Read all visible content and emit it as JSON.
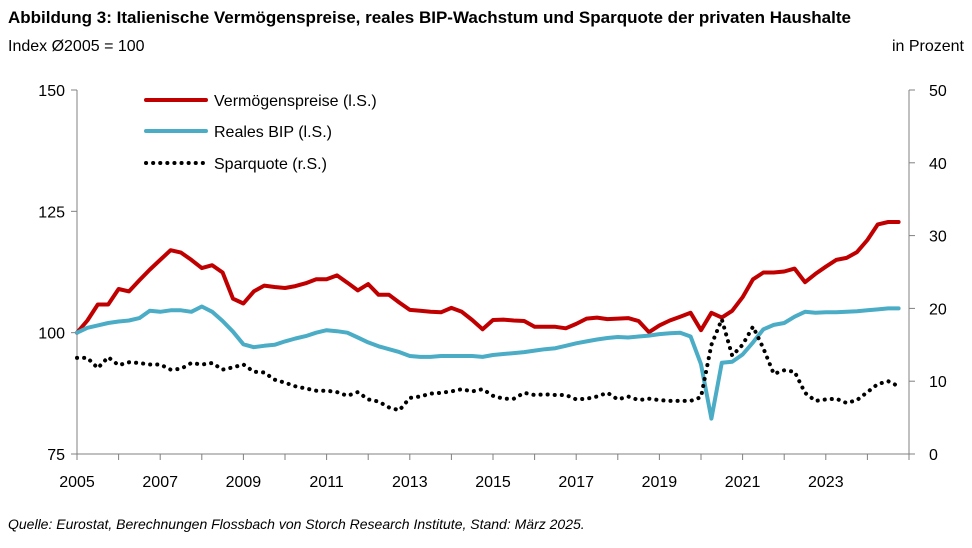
{
  "title": "Abbildung 3: Italienische Vermögenspreise, reales BIP-Wachstum und Sparquote der privaten Haushalte",
  "subtitle_left": "Index Ø2005 = 100",
  "subtitle_right": "in Prozent",
  "source": "Quelle: Eurostat, Berechnungen Flossbach von Storch Research Institute, Stand: März 2025.",
  "colors": {
    "asset_prices": "#c00000",
    "gdp": "#4bacc6",
    "savings": "#000000"
  },
  "chart_data": {
    "type": "line",
    "title": "Abbildung 3: Italienische Vermögenspreise, reales BIP-Wachstum und Sparquote der privaten Haushalte",
    "ylabel_left": "Index Ø2005 = 100",
    "ylabel_right": "in Prozent",
    "xlim": [
      2005,
      2025
    ],
    "ylim_left": [
      75,
      150
    ],
    "ylim_right": [
      0,
      50
    ],
    "x_ticks": [
      "2005",
      "2007",
      "2009",
      "2011",
      "2013",
      "2015",
      "2017",
      "2019",
      "2021",
      "2023"
    ],
    "y_ticks_left": [
      "75",
      "100",
      "125",
      "150"
    ],
    "y_ticks_right": [
      "0",
      "10",
      "20",
      "30",
      "40",
      "50"
    ],
    "legend": [
      "Vermögenspreise (l.S.)",
      "Reales BIP (l.S.)",
      "Sparquote (r.S.)"
    ],
    "series": [
      {
        "name": "Vermögenspreise (l.S.)",
        "axis": "left",
        "style": "solid",
        "x": [
          2005.0,
          2005.25,
          2005.5,
          2005.75,
          2006.0,
          2006.25,
          2006.5,
          2006.75,
          2007.0,
          2007.25,
          2007.5,
          2007.75,
          2008.0,
          2008.25,
          2008.5,
          2008.75,
          2009.0,
          2009.25,
          2009.5,
          2009.75,
          2010.0,
          2010.25,
          2010.5,
          2010.75,
          2011.0,
          2011.25,
          2011.5,
          2011.75,
          2012.0,
          2012.25,
          2012.5,
          2012.75,
          2013.0,
          2013.25,
          2013.5,
          2013.75,
          2014.0,
          2014.25,
          2014.5,
          2014.75,
          2015.0,
          2015.25,
          2015.5,
          2015.75,
          2016.0,
          2016.25,
          2016.5,
          2016.75,
          2017.0,
          2017.25,
          2017.5,
          2017.75,
          2018.0,
          2018.25,
          2018.5,
          2018.75,
          2019.0,
          2019.25,
          2019.5,
          2019.75,
          2020.0,
          2020.25,
          2020.5,
          2020.75,
          2021.0,
          2021.25,
          2021.5,
          2021.75,
          2022.0,
          2022.25,
          2022.5,
          2022.75,
          2023.0,
          2023.25,
          2023.5,
          2023.75,
          2024.0,
          2024.25,
          2024.5,
          2024.75
        ],
        "values": [
          100.0,
          102.5,
          105.8,
          105.8,
          109.0,
          108.5,
          110.8,
          113.0,
          115.0,
          117.0,
          116.5,
          115.0,
          113.3,
          113.9,
          112.4,
          107.0,
          106.0,
          108.5,
          109.7,
          109.4,
          109.2,
          109.6,
          110.2,
          111.0,
          111.0,
          111.8,
          110.3,
          108.7,
          110.0,
          107.8,
          107.8,
          106.2,
          104.7,
          104.5,
          104.3,
          104.2,
          105.1,
          104.3,
          102.6,
          100.7,
          102.6,
          102.7,
          102.5,
          102.4,
          101.2,
          101.2,
          101.2,
          100.9,
          101.8,
          102.9,
          103.1,
          102.8,
          102.9,
          103.0,
          102.4,
          100.1,
          101.5,
          102.5,
          103.3,
          104.1,
          100.5,
          104.1,
          103.1,
          104.5,
          107.3,
          111.0,
          112.4,
          112.4,
          112.6,
          113.2,
          110.4,
          112.1,
          113.6,
          115.0,
          115.4,
          116.6,
          119.1,
          122.3,
          122.8,
          122.8
        ]
      },
      {
        "name": "Reales BIP (l.S.)",
        "axis": "left",
        "style": "solid",
        "x": [
          2005.0,
          2005.25,
          2005.5,
          2005.75,
          2006.0,
          2006.25,
          2006.5,
          2006.75,
          2007.0,
          2007.25,
          2007.5,
          2007.75,
          2008.0,
          2008.25,
          2008.5,
          2008.75,
          2009.0,
          2009.25,
          2009.5,
          2009.75,
          2010.0,
          2010.25,
          2010.5,
          2010.75,
          2011.0,
          2011.25,
          2011.5,
          2011.75,
          2012.0,
          2012.25,
          2012.5,
          2012.75,
          2013.0,
          2013.25,
          2013.5,
          2013.75,
          2014.0,
          2014.25,
          2014.5,
          2014.75,
          2015.0,
          2015.25,
          2015.5,
          2015.75,
          2016.0,
          2016.25,
          2016.5,
          2016.75,
          2017.0,
          2017.25,
          2017.5,
          2017.75,
          2018.0,
          2018.25,
          2018.5,
          2018.75,
          2019.0,
          2019.25,
          2019.5,
          2019.75,
          2020.0,
          2020.25,
          2020.5,
          2020.75,
          2021.0,
          2021.25,
          2021.5,
          2021.75,
          2022.0,
          2022.25,
          2022.5,
          2022.75,
          2023.0,
          2023.25,
          2023.5,
          2023.75,
          2024.0,
          2024.25,
          2024.5,
          2024.75
        ],
        "values": [
          100.0,
          101.0,
          101.5,
          102.0,
          102.3,
          102.5,
          103.0,
          104.5,
          104.3,
          104.6,
          104.6,
          104.3,
          105.4,
          104.3,
          102.4,
          100.2,
          97.6,
          97.0,
          97.3,
          97.5,
          98.2,
          98.8,
          99.3,
          100.0,
          100.5,
          100.3,
          100.0,
          99.0,
          98.0,
          97.2,
          96.6,
          96.0,
          95.2,
          95.0,
          95.0,
          95.2,
          95.2,
          95.2,
          95.2,
          95.0,
          95.4,
          95.6,
          95.8,
          96.0,
          96.3,
          96.6,
          96.8,
          97.3,
          97.8,
          98.2,
          98.6,
          98.9,
          99.1,
          99.0,
          99.2,
          99.4,
          99.7,
          99.9,
          100.0,
          99.2,
          93.5,
          82.3,
          93.8,
          94.0,
          95.5,
          98.0,
          100.7,
          101.6,
          102.0,
          103.3,
          104.3,
          104.1,
          104.2,
          104.2,
          104.3,
          104.4,
          104.6,
          104.8,
          105.0,
          105.0
        ]
      },
      {
        "name": "Sparquote (r.S.)",
        "axis": "right",
        "style": "dotted",
        "x": [
          2005.0,
          2005.25,
          2005.5,
          2005.75,
          2006.0,
          2006.25,
          2006.5,
          2006.75,
          2007.0,
          2007.25,
          2007.5,
          2007.75,
          2008.0,
          2008.25,
          2008.5,
          2008.75,
          2009.0,
          2009.25,
          2009.5,
          2009.75,
          2010.0,
          2010.25,
          2010.5,
          2010.75,
          2011.0,
          2011.25,
          2011.5,
          2011.75,
          2012.0,
          2012.25,
          2012.5,
          2012.75,
          2013.0,
          2013.25,
          2013.5,
          2013.75,
          2014.0,
          2014.25,
          2014.5,
          2014.75,
          2015.0,
          2015.25,
          2015.5,
          2015.75,
          2016.0,
          2016.25,
          2016.5,
          2016.75,
          2017.0,
          2017.25,
          2017.5,
          2017.75,
          2018.0,
          2018.25,
          2018.5,
          2018.75,
          2019.0,
          2019.25,
          2019.5,
          2019.75,
          2020.0,
          2020.25,
          2020.5,
          2020.75,
          2021.0,
          2021.25,
          2021.5,
          2021.75,
          2022.0,
          2022.25,
          2022.5,
          2022.75,
          2023.0,
          2023.25,
          2023.5,
          2023.75,
          2024.0,
          2024.25,
          2024.5,
          2024.75
        ],
        "values": [
          13.2,
          13.2,
          11.8,
          13.3,
          12.2,
          12.6,
          12.5,
          12.3,
          12.3,
          11.6,
          11.7,
          12.5,
          12.3,
          12.5,
          11.6,
          11.9,
          12.3,
          11.3,
          11.2,
          10.2,
          9.8,
          9.3,
          9.0,
          8.7,
          8.7,
          8.5,
          8.0,
          8.5,
          7.5,
          7.2,
          6.4,
          6.0,
          7.7,
          7.9,
          8.3,
          8.4,
          8.6,
          8.9,
          8.6,
          8.9,
          8.0,
          7.6,
          7.6,
          8.4,
          8.1,
          8.2,
          8.1,
          8.1,
          7.5,
          7.6,
          7.9,
          8.4,
          7.5,
          7.9,
          7.4,
          7.6,
          7.4,
          7.3,
          7.3,
          7.3,
          7.8,
          15.0,
          18.5,
          13.5,
          15.0,
          17.5,
          14.5,
          11.0,
          11.5,
          11.3,
          8.4,
          7.3,
          7.5,
          7.6,
          7.0,
          7.4,
          8.5,
          9.6,
          10.0,
          9.3
        ]
      }
    ]
  }
}
